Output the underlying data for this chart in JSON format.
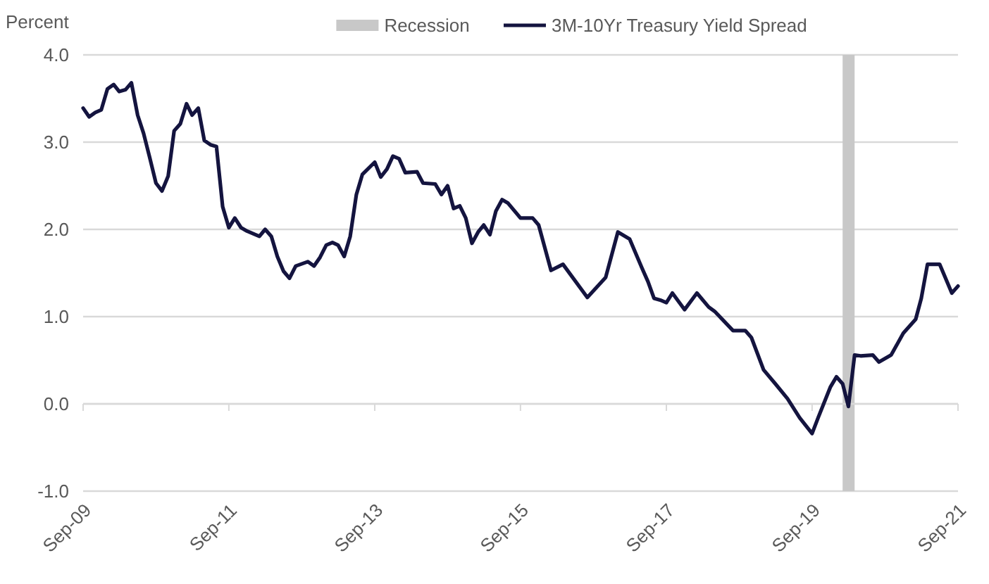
{
  "chart_data": {
    "type": "line",
    "ylabel": "Percent",
    "legend": "top",
    "grid": "y",
    "line_style": "solid",
    "marker": "none",
    "x": [
      "2009-09",
      "2009-10",
      "2009-11",
      "2009-12",
      "2010-01",
      "2010-02",
      "2010-03",
      "2010-04",
      "2010-05",
      "2010-06",
      "2010-07",
      "2010-08",
      "2010-09",
      "2010-10",
      "2010-11",
      "2010-12",
      "2011-01",
      "2011-02",
      "2011-03",
      "2011-04",
      "2011-05",
      "2011-06",
      "2011-07",
      "2011-08",
      "2011-09",
      "2011-10",
      "2011-11",
      "2011-12",
      "2012-02",
      "2012-03",
      "2012-04",
      "2012-05",
      "2012-06",
      "2012-07",
      "2012-08",
      "2012-10",
      "2012-11",
      "2012-12",
      "2013-01",
      "2013-02",
      "2013-03",
      "2013-04",
      "2013-05",
      "2013-06",
      "2013-07",
      "2013-09",
      "2013-10",
      "2013-11",
      "2013-12",
      "2014-01",
      "2014-02",
      "2014-04",
      "2014-05",
      "2014-07",
      "2014-08",
      "2014-09",
      "2014-10",
      "2014-11",
      "2014-12",
      "2015-01",
      "2015-02",
      "2015-03",
      "2015-04",
      "2015-05",
      "2015-06",
      "2015-07",
      "2015-09",
      "2015-11",
      "2015-12",
      "2016-02",
      "2016-04",
      "2016-08",
      "2016-11",
      "2017-01",
      "2017-03",
      "2017-05",
      "2017-06",
      "2017-07",
      "2017-08",
      "2017-09",
      "2017-10",
      "2017-12",
      "2018-02",
      "2018-04",
      "2018-05",
      "2018-08",
      "2018-10",
      "2018-11",
      "2019-01",
      "2019-03",
      "2019-05",
      "2019-07",
      "2019-09",
      "2019-10",
      "2019-12",
      "2020-01",
      "2020-02",
      "2020-03",
      "2020-04",
      "2020-05",
      "2020-07",
      "2020-08",
      "2020-10",
      "2020-12",
      "2021-02",
      "2021-03",
      "2021-04",
      "2021-05",
      "2021-06",
      "2021-08",
      "2021-09"
    ],
    "series": [
      {
        "name": "3M-10Yr Treasury Yield Spread",
        "color": "#14143f",
        "values": [
          3.39,
          3.29,
          3.34,
          3.37,
          3.61,
          3.66,
          3.58,
          3.6,
          3.68,
          3.31,
          3.1,
          2.82,
          2.53,
          2.44,
          2.61,
          3.13,
          3.21,
          3.44,
          3.31,
          3.39,
          3.02,
          2.97,
          2.95,
          2.26,
          2.02,
          2.13,
          2.02,
          1.98,
          1.92,
          2.0,
          1.92,
          1.69,
          1.52,
          1.44,
          1.58,
          1.63,
          1.58,
          1.68,
          1.82,
          1.85,
          1.82,
          1.69,
          1.92,
          2.4,
          2.63,
          2.77,
          2.6,
          2.69,
          2.84,
          2.81,
          2.65,
          2.66,
          2.53,
          2.52,
          2.4,
          2.5,
          2.24,
          2.27,
          2.13,
          1.84,
          1.97,
          2.05,
          1.94,
          2.21,
          2.34,
          2.3,
          2.13,
          2.13,
          2.05,
          1.53,
          1.6,
          1.22,
          1.45,
          1.97,
          1.89,
          1.56,
          1.4,
          1.21,
          1.19,
          1.16,
          1.27,
          1.08,
          1.27,
          1.11,
          1.06,
          0.84,
          0.84,
          0.76,
          0.39,
          0.23,
          0.06,
          -0.16,
          -0.34,
          -0.16,
          0.19,
          0.31,
          0.23,
          -0.03,
          0.56,
          0.55,
          0.56,
          0.48,
          0.56,
          0.81,
          0.97,
          1.21,
          1.6,
          1.6,
          1.6,
          1.27,
          1.35
        ]
      }
    ],
    "bands": [
      {
        "axis": "x",
        "from": "2020-02",
        "to": "2020-04",
        "label": "Recession",
        "color": "#c8c8c8"
      }
    ],
    "xlim": [
      "2009-09",
      "2021-09"
    ],
    "xticks": [
      {
        "value": "2009-09",
        "label": "Sep-09"
      },
      {
        "value": "2011-09",
        "label": "Sep-11"
      },
      {
        "value": "2013-09",
        "label": "Sep-13"
      },
      {
        "value": "2015-09",
        "label": "Sep-15"
      },
      {
        "value": "2017-09",
        "label": "Sep-17"
      },
      {
        "value": "2019-09",
        "label": "Sep-19"
      },
      {
        "value": "2021-09",
        "label": "Sep-21"
      }
    ],
    "ylim": [
      -1,
      4
    ],
    "yticks": [
      {
        "value": -1,
        "label": "-1.0"
      },
      {
        "value": 0,
        "label": "0.0"
      },
      {
        "value": 1,
        "label": "1.0"
      },
      {
        "value": 2,
        "label": "2.0"
      },
      {
        "value": 3,
        "label": "3.0"
      },
      {
        "value": 4,
        "label": "4.0"
      }
    ]
  }
}
